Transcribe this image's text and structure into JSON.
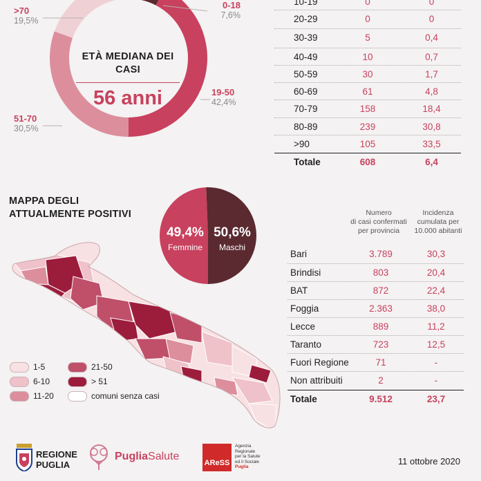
{
  "chart_data": [
    {
      "type": "pie",
      "title": "ETÀ MEDIANA DEI CASI",
      "center_value": "56 anni",
      "slices": [
        {
          "label": "0-18",
          "value": 7.6,
          "pct_text": "7,6%",
          "color": "#5a2a30"
        },
        {
          "label": "19-50",
          "value": 42.4,
          "pct_text": "42,4%",
          "color": "#c8415e"
        },
        {
          "label": "51-70",
          "value": 30.5,
          "pct_text": "30,5%",
          "color": "#dc8e9c"
        },
        {
          "label": ">70",
          "value": 19.5,
          "pct_text": "19,5%",
          "color": "#efd0d5"
        }
      ]
    },
    {
      "type": "table",
      "rows": [
        {
          "label": "10-19",
          "v1": "0",
          "v2": "0"
        },
        {
          "label": "20-29",
          "v1": "0",
          "v2": "0"
        },
        {
          "label": "30-39",
          "v1": "5",
          "v2": "0,4"
        },
        {
          "label": "40-49",
          "v1": "10",
          "v2": "0,7"
        },
        {
          "label": "50-59",
          "v1": "30",
          "v2": "1,7"
        },
        {
          "label": "60-69",
          "v1": "61",
          "v2": "4,8"
        },
        {
          "label": "70-79",
          "v1": "158",
          "v2": "18,4"
        },
        {
          "label": "80-89",
          "v1": "239",
          "v2": "30,8"
        },
        {
          "label": ">90",
          "v1": "105",
          "v2": "33,5"
        }
      ],
      "total": {
        "label": "Totale",
        "v1": "608",
        "v2": "6,4"
      }
    },
    {
      "type": "pie",
      "slices": [
        {
          "label": "Femmine",
          "value": 49.4,
          "pct_text": "49,4%",
          "color": "#c8415e"
        },
        {
          "label": "Maschi",
          "value": 50.6,
          "pct_text": "50,6%",
          "color": "#5a2a30"
        }
      ]
    },
    {
      "type": "table",
      "header": {
        "col1": [
          "Numero",
          "di casi confermati",
          "per provincia"
        ],
        "col2": [
          "Incidenza",
          "cumulata per",
          "10.000 abitanti"
        ]
      },
      "rows": [
        {
          "label": "Bari",
          "v1": "3.789",
          "v2": "30,3"
        },
        {
          "label": "Brindisi",
          "v1": "803",
          "v2": "20,4"
        },
        {
          "label": "BAT",
          "v1": "872",
          "v2": "22,4"
        },
        {
          "label": "Foggia",
          "v1": "2.363",
          "v2": "38,0"
        },
        {
          "label": "Lecce",
          "v1": "889",
          "v2": "11,2"
        },
        {
          "label": "Taranto",
          "v1": "723",
          "v2": "12,5"
        },
        {
          "label": "Fuori Regione",
          "v1": "71",
          "v2": "-"
        },
        {
          "label": "Non attribuiti",
          "v1": "2",
          "v2": "-"
        }
      ],
      "total": {
        "label": "Totale",
        "v1": "9.512",
        "v2": "23,7"
      }
    }
  ],
  "map": {
    "title_line1": "MAPPA DEGLI",
    "title_line2": "ATTUALMENTE POSITIVI",
    "legend": [
      {
        "label": "1-5",
        "color": "#f8e1e3"
      },
      {
        "label": "6-10",
        "color": "#efc1c8"
      },
      {
        "label": "11-20",
        "color": "#dc8e9c"
      },
      {
        "label": "21-50",
        "color": "#c0506a"
      },
      {
        "label": "> 51",
        "color": "#9c1c3c"
      },
      {
        "label": "comuni senza casi",
        "color": "#ffffff"
      }
    ]
  },
  "footer": {
    "regione_line1": "REGIONE",
    "regione_line2": "PUGLIA",
    "puglia_salute_a": "Puglia",
    "puglia_salute_b": "Salute",
    "aress_logo": "AReSS",
    "aress_text": [
      "Agenzia",
      "Regionale",
      "per la Salute",
      "ed il Sociale",
      "Puglia"
    ],
    "date": "11 ottobre 2020"
  }
}
